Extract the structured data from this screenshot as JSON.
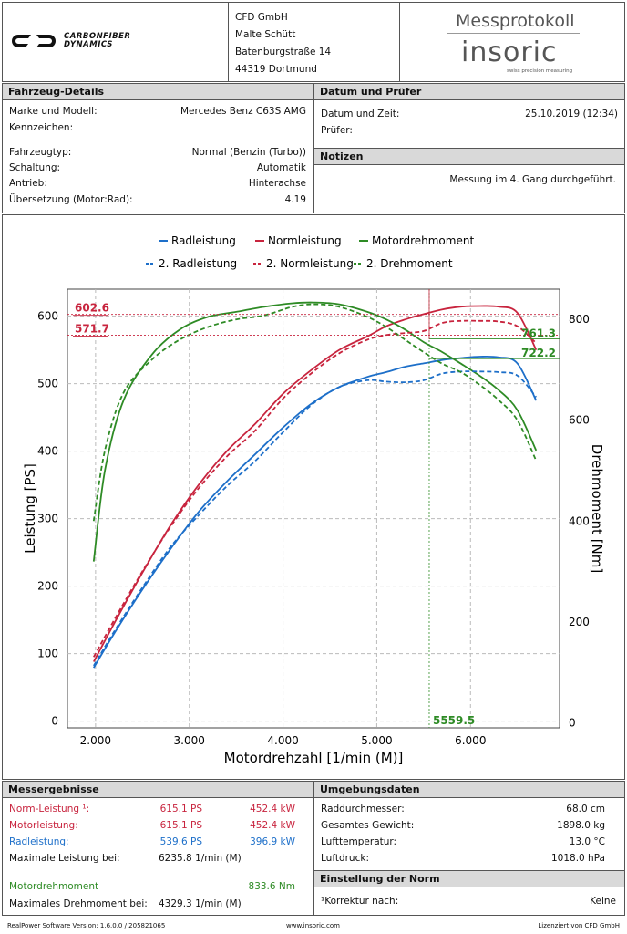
{
  "header": {
    "company_logo": "CARBONFIBER DYNAMICS",
    "address": [
      "CFD GmbH",
      "Malte Schütt",
      "Batenburgstraße 14",
      "44319 Dortmund"
    ],
    "protocol_title": "Messprotokoll",
    "brand_logo": "insoric",
    "brand_tagline": "swiss precision measuring"
  },
  "vehicle": {
    "title": "Fahrzeug-Details",
    "rows": [
      {
        "label": "Marke und Modell:",
        "value": "Mercedes Benz C63S AMG"
      },
      {
        "label": "Kennzeichen:",
        "value": ""
      },
      {
        "label": "Fahrzeugtyp:",
        "value": "Normal (Benzin (Turbo))"
      },
      {
        "label": "Schaltung:",
        "value": "Automatik"
      },
      {
        "label": "Antrieb:",
        "value": "Hinterachse"
      },
      {
        "label": "Übersetzung (Motor:Rad):",
        "value": "4.19"
      }
    ]
  },
  "date": {
    "title": "Datum und Prüfer",
    "rows": [
      {
        "label": "Datum und Zeit:",
        "value": "25.10.2019 (12:34)"
      },
      {
        "label": "Prüfer:",
        "value": ""
      }
    ]
  },
  "notes": {
    "title": "Notizen",
    "text": "Messung im 4. Gang durchgeführt."
  },
  "chart_data": {
    "type": "line",
    "xlabel": "Motordrehzahl [1/min (M)]",
    "ylabel": "Leistung [PS]",
    "y2label": "Drehmoment [Nm]",
    "xlim": [
      1700,
      6950
    ],
    "ylim": [
      -10,
      640
    ],
    "y2lim": [
      -10,
      860
    ],
    "x_ticks": [
      2000,
      3000,
      4000,
      5000,
      6000
    ],
    "x_tick_labels": [
      "2.000",
      "3.000",
      "4.000",
      "5.000",
      "6.000"
    ],
    "y_ticks": [
      0,
      100,
      200,
      300,
      400,
      500,
      600
    ],
    "y2_ticks": [
      0,
      200,
      400,
      600,
      800
    ],
    "grid": true,
    "legend": [
      {
        "name": "Radleistung",
        "color": "#1d6fc9",
        "dashed": false
      },
      {
        "name": "Normleistung",
        "color": "#c8243e",
        "dashed": false
      },
      {
        "name": "Motordrehmoment",
        "color": "#2e8b25",
        "dashed": false
      },
      {
        "name": "2. Radleistung",
        "color": "#1d6fc9",
        "dashed": true
      },
      {
        "name": "2. Normleistung",
        "color": "#c8243e",
        "dashed": true
      },
      {
        "name": "2. Drehmoment",
        "color": "#2e8b25",
        "dashed": true
      }
    ],
    "annotations": {
      "left_red": [
        {
          "value": 602.6,
          "label": "602.6"
        },
        {
          "value": 571.7,
          "label": "571.7"
        }
      ],
      "right_green": [
        {
          "value": 761.3,
          "label": "761.3"
        },
        {
          "value": 722.2,
          "label": "722.2"
        }
      ],
      "x_marker": {
        "value": 5559.5,
        "label": "5559.5"
      }
    },
    "series": [
      {
        "name": "Radleistung",
        "axis": "left",
        "color": "#1d6fc9",
        "dashed": false,
        "x": [
          1980,
          2200,
          2500,
          2800,
          3100,
          3400,
          3700,
          4000,
          4300,
          4600,
          4900,
          5100,
          5300,
          5500,
          5700,
          5900,
          6100,
          6300,
          6500,
          6700
        ],
        "y": [
          79,
          130,
          195,
          255,
          310,
          355,
          395,
          435,
          470,
          495,
          510,
          517,
          525,
          530,
          535,
          538,
          540,
          539,
          530,
          475
        ]
      },
      {
        "name": "Normleistung",
        "axis": "left",
        "color": "#c8243e",
        "dashed": false,
        "x": [
          1980,
          2200,
          2500,
          2800,
          3100,
          3400,
          3700,
          4000,
          4300,
          4600,
          4900,
          5100,
          5300,
          5500,
          5700,
          5900,
          6100,
          6300,
          6500,
          6700
        ],
        "y": [
          88,
          145,
          220,
          290,
          350,
          400,
          440,
          485,
          520,
          550,
          570,
          585,
          595,
          603,
          610,
          614,
          615,
          614,
          605,
          550
        ]
      },
      {
        "name": "Motordrehmoment",
        "axis": "right",
        "color": "#2e8b25",
        "dashed": false,
        "x": [
          1980,
          2100,
          2300,
          2600,
          2900,
          3200,
          3500,
          3800,
          4100,
          4329,
          4600,
          4900,
          5100,
          5300,
          5500,
          5700,
          5900,
          6100,
          6300,
          6500,
          6700
        ],
        "y": [
          320,
          500,
          640,
          730,
          780,
          805,
          815,
          825,
          832,
          833.6,
          830,
          815,
          800,
          780,
          755,
          735,
          712,
          688,
          660,
          620,
          540
        ]
      },
      {
        "name": "2. Radleistung",
        "axis": "left",
        "color": "#1d6fc9",
        "dashed": true,
        "x": [
          1980,
          2200,
          2500,
          2800,
          3100,
          3400,
          3700,
          4000,
          4300,
          4600,
          4900,
          5100,
          5300,
          5500,
          5700,
          5900,
          6100,
          6300,
          6500,
          6700
        ],
        "y": [
          82,
          133,
          198,
          258,
          305,
          348,
          385,
          428,
          468,
          495,
          505,
          503,
          502,
          505,
          515,
          518,
          518,
          517,
          512,
          480
        ]
      },
      {
        "name": "2. Normleistung",
        "axis": "left",
        "color": "#c8243e",
        "dashed": true,
        "x": [
          1980,
          2200,
          2500,
          2800,
          3100,
          3400,
          3700,
          4000,
          4300,
          4600,
          4900,
          5100,
          5300,
          5500,
          5700,
          5900,
          6100,
          6300,
          6500,
          6700
        ],
        "y": [
          95,
          150,
          222,
          288,
          345,
          392,
          430,
          478,
          515,
          545,
          565,
          572,
          575,
          578,
          590,
          593,
          593,
          592,
          585,
          560
        ]
      },
      {
        "name": "2. Drehmoment",
        "axis": "right",
        "color": "#2e8b25",
        "dashed": true,
        "x": [
          1980,
          2100,
          2300,
          2600,
          2900,
          3200,
          3500,
          3800,
          4100,
          4329,
          4600,
          4900,
          5100,
          5300,
          5500,
          5700,
          5900,
          6100,
          6300,
          6500,
          6700
        ],
        "y": [
          400,
          540,
          655,
          720,
          760,
          785,
          800,
          808,
          825,
          830,
          825,
          805,
          785,
          760,
          735,
          712,
          695,
          670,
          640,
          600,
          520
        ]
      }
    ]
  },
  "results": {
    "title": "Messergebnisse",
    "norm": {
      "label": "Norm-Leistung ¹:",
      "ps": "615.1 PS",
      "kw": "452.4 kW"
    },
    "motor": {
      "label": "Motorleistung:",
      "ps": "615.1 PS",
      "kw": "452.4 kW"
    },
    "rad": {
      "label": "Radleistung:",
      "ps": "539.6 PS",
      "kw": "396.9 kW"
    },
    "maxpower": {
      "label": "Maximale Leistung bei:",
      "value": "6235.8 1/min (M)"
    },
    "torque": {
      "label": "Motordrehmoment",
      "value": "833.6 Nm"
    },
    "maxtorque": {
      "label": "Maximales Drehmoment bei:",
      "value": "4329.3 1/min (M)"
    }
  },
  "environment": {
    "title": "Umgebungsdaten",
    "rows": [
      {
        "label": "Raddurchmesser:",
        "value": "68.0 cm"
      },
      {
        "label": "Gesamtes Gewicht:",
        "value": "1898.0 kg"
      },
      {
        "label": "Lufttemperatur:",
        "value": "13.0 °C"
      },
      {
        "label": "Luftdruck:",
        "value": "1018.0 hPa"
      }
    ]
  },
  "norm": {
    "title": "Einstellung der Norm",
    "label": "¹Korrektur nach:",
    "value": "Keine"
  },
  "footer": {
    "left": "RealPower Software Version: 1.6.0.0 / 205821065",
    "center": "www.insoric.com",
    "right": "Lizenziert von CFD GmbH"
  }
}
